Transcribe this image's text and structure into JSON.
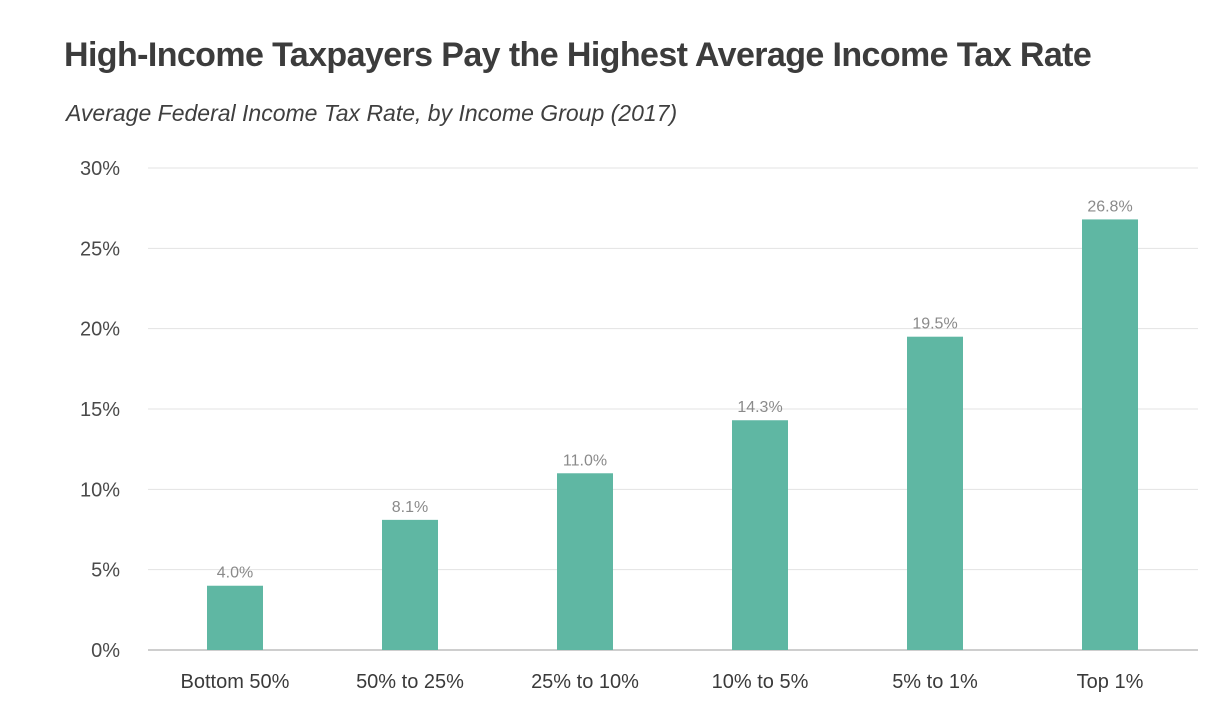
{
  "chart_data": {
    "type": "bar",
    "title": "High-Income Taxpayers Pay the Highest Average Income Tax Rate",
    "subtitle": "Average Federal Income Tax Rate, by Income Group (2017)",
    "categories": [
      "Bottom 50%",
      "50% to 25%",
      "25% to 10%",
      "10% to 5%",
      "5% to 1%",
      "Top 1%"
    ],
    "values": [
      4.0,
      8.1,
      11.0,
      14.3,
      19.5,
      26.8
    ],
    "data_labels": [
      "4.0%",
      "8.1%",
      "11.0%",
      "14.3%",
      "19.5%",
      "26.8%"
    ],
    "ylim": [
      0,
      30
    ],
    "yticks": [
      0,
      5,
      10,
      15,
      20,
      25,
      30
    ],
    "ytick_labels": [
      "0%",
      "5%",
      "10%",
      "15%",
      "20%",
      "25%",
      "30%"
    ],
    "xlabel": "",
    "ylabel": "",
    "grid": true,
    "bar_color": "#5fb7a3"
  }
}
